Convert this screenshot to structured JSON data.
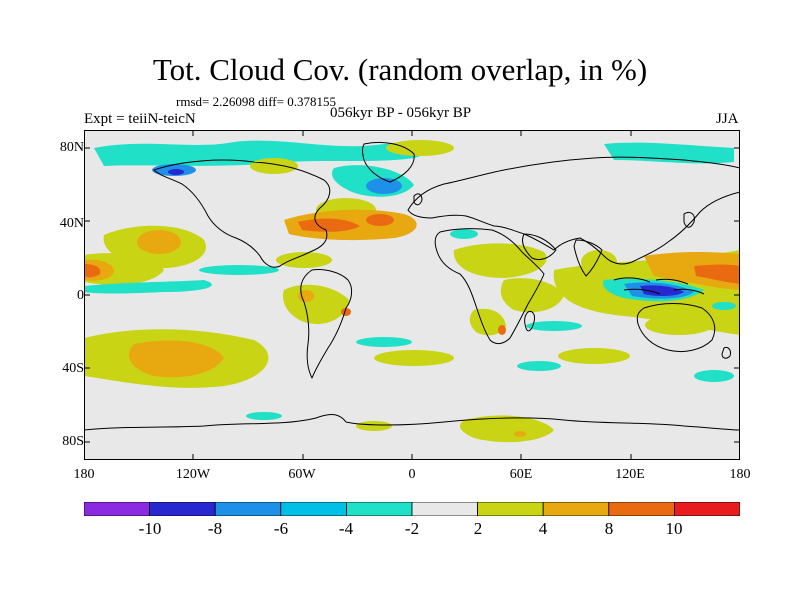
{
  "title": "Tot. Cloud Cov. (random overlap, in %)",
  "stats": "rmsd= 2.26098 diff= 0.378155",
  "experiment": "Expt = teiiN-teicN",
  "period": "056kyr BP - 056kyr BP",
  "season": "JJA",
  "lat_labels": [
    "80N",
    "40N",
    "0",
    "40S",
    "80S"
  ],
  "lon_labels": [
    "180",
    "120W",
    "60W",
    "0",
    "60E",
    "120E",
    "180"
  ],
  "colorbar": {
    "colors": [
      "#8a2be2",
      "#2828d0",
      "#1e90e8",
      "#00c0e8",
      "#20e0c8",
      "#e8e8e8",
      "#c8d414",
      "#e8a810",
      "#ea6a12",
      "#e81c1c"
    ],
    "labels": [
      "-10",
      "-8",
      "-6",
      "-4",
      "-2",
      "2",
      "4",
      "8",
      "10"
    ]
  },
  "map_colors": {
    "background": "#e8e8e8",
    "land_outline": "#000000",
    "yellow": "#c8d414",
    "orange": "#e8a810",
    "dark_orange": "#ea6a12",
    "red": "#e81c1c",
    "cyan": "#20e0c8",
    "light_blue": "#00c0e8",
    "blue": "#1e90e8",
    "dark_blue": "#2828d0"
  }
}
